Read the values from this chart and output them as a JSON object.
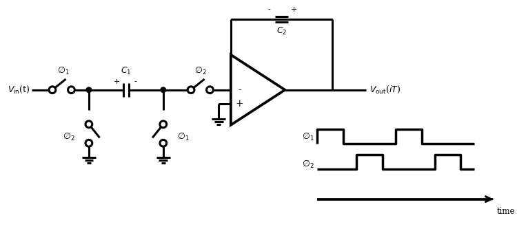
{
  "bg_color": "#ffffff",
  "line_color": "#000000",
  "line_width": 2.2,
  "fig_width": 7.5,
  "fig_height": 3.36,
  "dpi": 100
}
